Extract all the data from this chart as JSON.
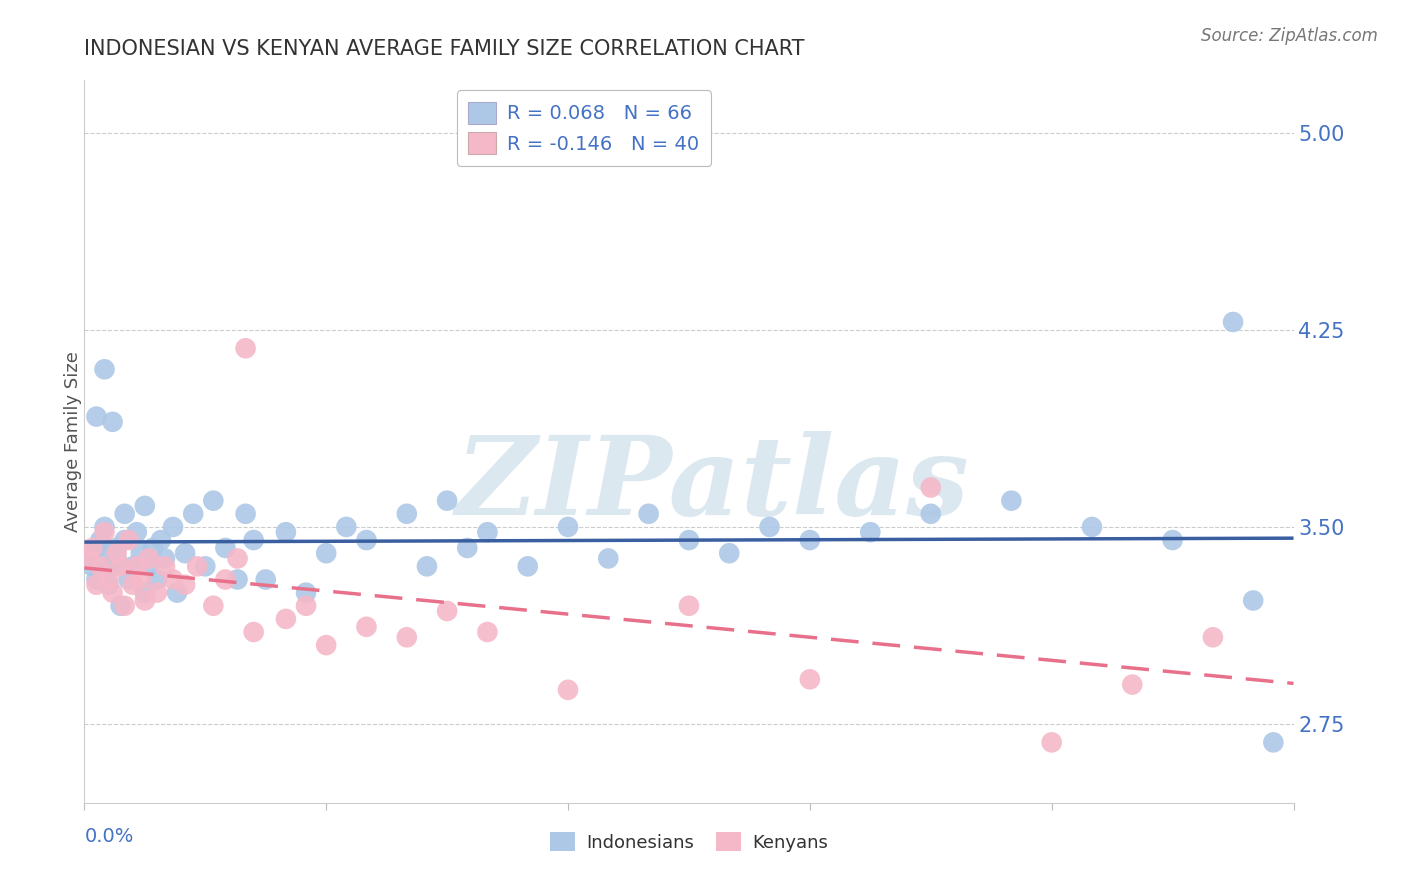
{
  "title": "INDONESIAN VS KENYAN AVERAGE FAMILY SIZE CORRELATION CHART",
  "source": "Source: ZipAtlas.com",
  "ylabel": "Average Family Size",
  "xlim": [
    0.0,
    0.3
  ],
  "ylim": [
    2.45,
    5.2
  ],
  "yticks": [
    2.75,
    3.5,
    4.25,
    5.0
  ],
  "xtick_positions": [
    0.0,
    0.06,
    0.12,
    0.18,
    0.24,
    0.3
  ],
  "grid_color": "#cccccc",
  "background_color": "#ffffff",
  "legend_r1": "R = 0.068   N = 66",
  "legend_r2": "R = -0.146   N = 40",
  "legend_color_blue": "#adc8e6",
  "legend_color_pink": "#f5b8c8",
  "indonesian_color": "#adc8e6",
  "kenyan_color": "#f5b8c8",
  "blue_line_color": "#3a5fa0",
  "pink_line_color": "#e8708a",
  "tick_label_color": "#4472c4",
  "title_color": "#333333",
  "source_color": "#777777",
  "watermark_text": "ZIPatlas",
  "watermark_color": "#dce8f0",
  "indonesian_x": [
    0.001,
    0.002,
    0.003,
    0.003,
    0.004,
    0.005,
    0.005,
    0.006,
    0.006,
    0.007,
    0.008,
    0.008,
    0.009,
    0.01,
    0.01,
    0.011,
    0.012,
    0.013,
    0.014,
    0.015,
    0.015,
    0.016,
    0.017,
    0.018,
    0.019,
    0.02,
    0.022,
    0.023,
    0.025,
    0.027,
    0.03,
    0.032,
    0.035,
    0.038,
    0.04,
    0.042,
    0.045,
    0.05,
    0.055,
    0.06,
    0.065,
    0.07,
    0.08,
    0.085,
    0.09,
    0.095,
    0.1,
    0.11,
    0.12,
    0.13,
    0.14,
    0.15,
    0.16,
    0.17,
    0.18,
    0.195,
    0.21,
    0.23,
    0.25,
    0.27,
    0.285,
    0.29,
    0.295,
    0.005,
    0.007,
    0.003
  ],
  "indonesian_y": [
    3.38,
    3.35,
    3.42,
    3.3,
    3.45,
    3.5,
    3.32,
    3.4,
    3.28,
    3.35,
    3.42,
    3.38,
    3.2,
    3.45,
    3.55,
    3.3,
    3.35,
    3.48,
    3.4,
    3.25,
    3.58,
    3.35,
    3.42,
    3.3,
    3.45,
    3.38,
    3.5,
    3.25,
    3.4,
    3.55,
    3.35,
    3.6,
    3.42,
    3.3,
    3.55,
    3.45,
    3.3,
    3.48,
    3.25,
    3.4,
    3.5,
    3.45,
    3.55,
    3.35,
    3.6,
    3.42,
    3.48,
    3.35,
    3.5,
    3.38,
    3.55,
    3.45,
    3.4,
    3.5,
    3.45,
    3.48,
    3.55,
    3.6,
    3.5,
    3.45,
    4.28,
    3.22,
    2.68,
    4.1,
    3.9,
    3.92
  ],
  "kenyan_x": [
    0.001,
    0.002,
    0.003,
    0.004,
    0.005,
    0.006,
    0.007,
    0.008,
    0.009,
    0.01,
    0.011,
    0.012,
    0.013,
    0.014,
    0.015,
    0.016,
    0.018,
    0.02,
    0.022,
    0.025,
    0.028,
    0.032,
    0.035,
    0.038,
    0.042,
    0.05,
    0.055,
    0.06,
    0.07,
    0.08,
    0.09,
    0.1,
    0.12,
    0.15,
    0.18,
    0.21,
    0.24,
    0.26,
    0.28,
    0.04
  ],
  "kenyan_y": [
    3.38,
    3.42,
    3.28,
    3.35,
    3.48,
    3.3,
    3.25,
    3.4,
    3.35,
    3.2,
    3.45,
    3.28,
    3.35,
    3.3,
    3.22,
    3.38,
    3.25,
    3.35,
    3.3,
    3.28,
    3.35,
    3.2,
    3.3,
    3.38,
    3.1,
    3.15,
    3.2,
    3.05,
    3.12,
    3.08,
    3.18,
    3.1,
    2.88,
    3.2,
    2.92,
    3.65,
    2.68,
    2.9,
    3.08,
    4.18
  ]
}
